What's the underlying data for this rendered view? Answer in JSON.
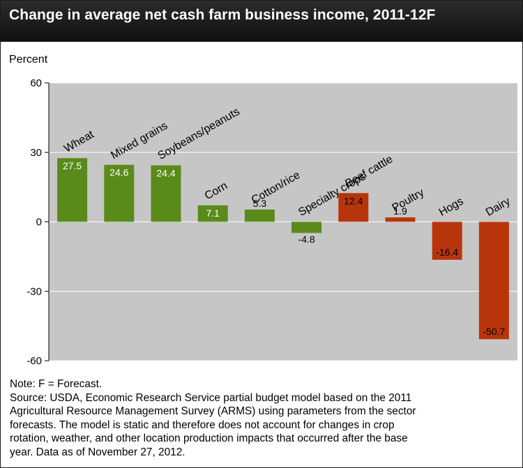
{
  "header": {
    "title": "Change in average net cash farm business income, 2011-12F"
  },
  "chart_data": {
    "type": "bar",
    "title": "Change in average net cash farm business income, 2011-12F",
    "ylabel": "Percent",
    "xlabel": "",
    "ylim": [
      -60,
      60
    ],
    "yticks": [
      60,
      30,
      0,
      -30,
      -60
    ],
    "ytick_labels": [
      "60",
      "30",
      "0",
      "-30",
      "-60"
    ],
    "categories": [
      "Wheat",
      "Mixed grains",
      "Soybeans/peanuts",
      "Corn",
      "Cotton/rice",
      "Specialty crops",
      "Beef cattle",
      "Poultry",
      "Hogs",
      "Dairy"
    ],
    "values": [
      27.5,
      24.6,
      24.4,
      7.1,
      5.3,
      -4.8,
      12.4,
      1.9,
      -16.4,
      -50.7
    ],
    "value_labels": [
      "27.5",
      "24.6",
      "24.4",
      "7.1",
      "5.3",
      "-4.8",
      "12.4",
      "1.9",
      "-16.4",
      "-50.7"
    ],
    "groups": [
      "crop",
      "crop",
      "crop",
      "crop",
      "crop",
      "crop",
      "livestock",
      "livestock",
      "livestock",
      "livestock"
    ],
    "colors": {
      "crop": "#5a8b1a",
      "livestock": "#b8350c",
      "plot_bg": "#c6c6c6"
    }
  },
  "footer": {
    "lines": [
      "Note: F = Forecast.",
      "Source: USDA, Economic Research Service partial budget model based on the 2011",
      "Agricultural Resource Management Survey (ARMS) using parameters from the sector",
      "forecasts. The model is static and therefore does not account for changes in crop",
      "rotation, weather, and other location production impacts that occurred after the base",
      "year. Data as of November 27, 2012."
    ]
  }
}
